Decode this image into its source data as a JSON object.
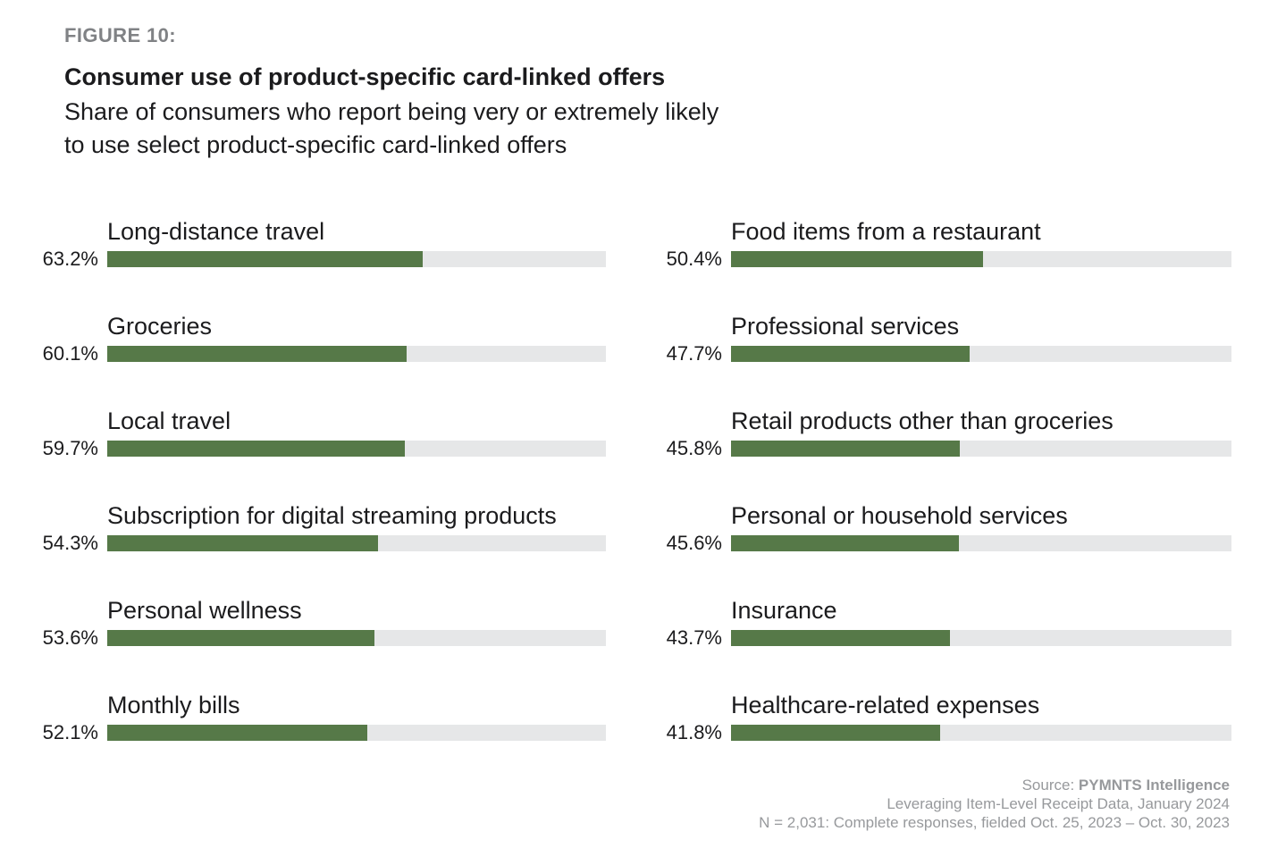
{
  "header": {
    "figure_label": "FIGURE 10:",
    "title": "Consumer use of product-specific card-linked offers",
    "subtitle_line1": "Share of consumers who report being very or extremely likely",
    "subtitle_line2": "to use select product-specific card-linked offers"
  },
  "chart_data": {
    "type": "bar",
    "orientation": "horizontal",
    "title": "Consumer use of product-specific card-linked offers",
    "subtitle": "Share of consumers who report being very or extremely likely to use select product-specific card-linked offers",
    "value_unit": "%",
    "axis_range": [
      0,
      100
    ],
    "grid": false,
    "legend": false,
    "bar_color": "#567948",
    "track_color": "#E6E7E8",
    "columns": [
      {
        "items": [
          {
            "label": "Long-distance travel",
            "value": 63.2
          },
          {
            "label": "Groceries",
            "value": 60.1
          },
          {
            "label": "Local travel",
            "value": 59.7
          },
          {
            "label": "Subscription for digital streaming products",
            "value": 54.3
          },
          {
            "label": "Personal wellness",
            "value": 53.6
          },
          {
            "label": "Monthly bills",
            "value": 52.1
          }
        ]
      },
      {
        "items": [
          {
            "label": "Food items from a restaurant",
            "value": 50.4
          },
          {
            "label": "Professional services",
            "value": 47.7
          },
          {
            "label": "Retail products other than groceries",
            "value": 45.8
          },
          {
            "label": "Personal or household services",
            "value": 45.6
          },
          {
            "label": "Insurance",
            "value": 43.7
          },
          {
            "label": "Healthcare-related expenses",
            "value": 41.8
          }
        ]
      }
    ]
  },
  "footer": {
    "source_prefix": "Source: ",
    "source_name": "PYMNTS Intelligence",
    "line2": "Leveraging Item-Level Receipt Data, January 2024",
    "line3": "N = 2,031: Complete responses, fielded Oct. 25, 2023 – Oct. 30, 2023"
  }
}
